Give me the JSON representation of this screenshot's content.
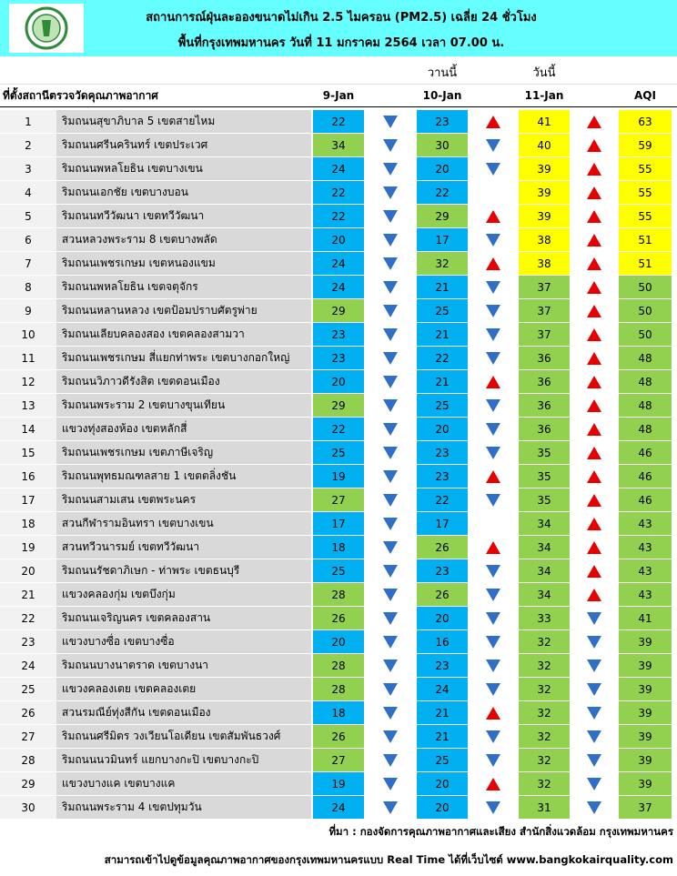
{
  "header": {
    "title": "สถานการณ์ฝุ่นละอองขนาดไม่เกิน 2.5 ไมครอน (PM2.5) เฉลี่ย 24 ชั่วโมง",
    "subtitle": "พื้นที่กรุงเทพมหานคร วันที่ 11 มกราคม 2564 เวลา 07.00 น."
  },
  "table": {
    "yesterday": "วานนี้",
    "today": "วันนี้",
    "columns": [
      "ที่ตั้งสถานีตรวจวัดคุณภาพอากาศ",
      "9-Jan",
      "10-Jan",
      "11-Jan",
      "AQI"
    ],
    "trend_colors": {
      "up": "#e60000",
      "down": "#2f6fc8"
    },
    "rows": [
      {
        "no": 1,
        "name": "ริมถนนสุขาภิบาล 5 เขตสายไหม",
        "values": [
          22,
          23,
          41,
          63
        ],
        "colors": [
          "#00b0f0",
          "#00b0f0",
          "#ffff00",
          "#ffff00"
        ],
        "trends": [
          "down",
          "up",
          "up"
        ]
      },
      {
        "no": 2,
        "name": "ริมถนนศรีนครินทร์ เขตประเวศ",
        "values": [
          34,
          30,
          40,
          59
        ],
        "colors": [
          "#92d050",
          "#92d050",
          "#ffff00",
          "#ffff00"
        ],
        "trends": [
          "down",
          "down",
          "up"
        ]
      },
      {
        "no": 3,
        "name": "ริมถนนพหลโยธิน เขตบางเขน",
        "values": [
          24,
          20,
          39,
          55
        ],
        "colors": [
          "#00b0f0",
          "#00b0f0",
          "#ffff00",
          "#ffff00"
        ],
        "trends": [
          "down",
          "down",
          "up"
        ]
      },
      {
        "no": 4,
        "name": "ริมถนนเอกชัย เขตบางบอน",
        "values": [
          22,
          22,
          39,
          55
        ],
        "colors": [
          "#00b0f0",
          "#00b0f0",
          "#ffff00",
          "#ffff00"
        ],
        "trends": [
          "down",
          null,
          "up"
        ]
      },
      {
        "no": 5,
        "name": "ริมถนนทวีวัฒนา เขตทวีวัฒนา",
        "values": [
          22,
          29,
          39,
          55
        ],
        "colors": [
          "#00b0f0",
          "#92d050",
          "#ffff00",
          "#ffff00"
        ],
        "trends": [
          "down",
          "up",
          "up"
        ]
      },
      {
        "no": 6,
        "name": "สวนหลวงพระราม 8 เขตบางพลัด",
        "values": [
          20,
          17,
          38,
          51
        ],
        "colors": [
          "#00b0f0",
          "#00b0f0",
          "#ffff00",
          "#ffff00"
        ],
        "trends": [
          "down",
          "down",
          "up"
        ]
      },
      {
        "no": 7,
        "name": "ริมถนนเพชรเกษม เขตหนองแขม",
        "values": [
          24,
          32,
          38,
          51
        ],
        "colors": [
          "#00b0f0",
          "#92d050",
          "#ffff00",
          "#ffff00"
        ],
        "trends": [
          "down",
          "up",
          "up"
        ]
      },
      {
        "no": 8,
        "name": "ริมถนนพหลโยธิน เขตจตุจักร",
        "values": [
          24,
          21,
          37,
          50
        ],
        "colors": [
          "#00b0f0",
          "#00b0f0",
          "#92d050",
          "#92d050"
        ],
        "trends": [
          "down",
          "down",
          "up"
        ]
      },
      {
        "no": 9,
        "name": "ริมถนนหลานหลวง เขตป้อมปราบศัตรูพ่าย",
        "values": [
          29,
          25,
          37,
          50
        ],
        "colors": [
          "#92d050",
          "#00b0f0",
          "#92d050",
          "#92d050"
        ],
        "trends": [
          "down",
          "down",
          "up"
        ]
      },
      {
        "no": 10,
        "name": "ริมถนนเลียบคลองสอง เขตคลองสามวา",
        "values": [
          23,
          21,
          37,
          50
        ],
        "colors": [
          "#00b0f0",
          "#00b0f0",
          "#92d050",
          "#92d050"
        ],
        "trends": [
          "down",
          "down",
          "up"
        ]
      },
      {
        "no": 11,
        "name": "ริมถนนเพชรเกษม สี่แยกท่าพระ เขตบางกอกใหญ่",
        "values": [
          23,
          22,
          36,
          48
        ],
        "colors": [
          "#00b0f0",
          "#00b0f0",
          "#92d050",
          "#92d050"
        ],
        "trends": [
          "down",
          "down",
          "up"
        ]
      },
      {
        "no": 12,
        "name": "ริมถนนวิภาวดีรังสิต เขตดอนเมือง",
        "values": [
          20,
          21,
          36,
          48
        ],
        "colors": [
          "#00b0f0",
          "#00b0f0",
          "#92d050",
          "#92d050"
        ],
        "trends": [
          "down",
          "up",
          "up"
        ]
      },
      {
        "no": 13,
        "name": "ริมถนนพระราม 2 เขตบางขุนเทียน",
        "values": [
          29,
          25,
          36,
          48
        ],
        "colors": [
          "#92d050",
          "#00b0f0",
          "#92d050",
          "#92d050"
        ],
        "trends": [
          "down",
          "down",
          "up"
        ]
      },
      {
        "no": 14,
        "name": "แขวงทุ่งสองห้อง เขตหลักสี่",
        "values": [
          22,
          20,
          36,
          48
        ],
        "colors": [
          "#00b0f0",
          "#00b0f0",
          "#92d050",
          "#92d050"
        ],
        "trends": [
          "down",
          "down",
          "up"
        ]
      },
      {
        "no": 15,
        "name": "ริมถนนเพชรเกษม เขตภาษีเจริญ",
        "values": [
          25,
          23,
          35,
          46
        ],
        "colors": [
          "#00b0f0",
          "#00b0f0",
          "#92d050",
          "#92d050"
        ],
        "trends": [
          "down",
          "down",
          "up"
        ]
      },
      {
        "no": 16,
        "name": "ริมถนนพุทธมณฑลสาย 1 เขตตลิ่งชัน",
        "values": [
          19,
          23,
          35,
          46
        ],
        "colors": [
          "#00b0f0",
          "#00b0f0",
          "#92d050",
          "#92d050"
        ],
        "trends": [
          "down",
          "up",
          "up"
        ]
      },
      {
        "no": 17,
        "name": "ริมถนนสามเสน เขตพระนคร",
        "values": [
          27,
          22,
          35,
          46
        ],
        "colors": [
          "#92d050",
          "#00b0f0",
          "#92d050",
          "#92d050"
        ],
        "trends": [
          "down",
          "down",
          "up"
        ]
      },
      {
        "no": 18,
        "name": "สวนกีฬารามอินทรา เขตบางเขน",
        "values": [
          17,
          17,
          34,
          43
        ],
        "colors": [
          "#00b0f0",
          "#00b0f0",
          "#92d050",
          "#92d050"
        ],
        "trends": [
          "down",
          null,
          "up"
        ]
      },
      {
        "no": 19,
        "name": "สวนทวีวนารมย์ เขตทวีวัฒนา",
        "values": [
          18,
          26,
          34,
          43
        ],
        "colors": [
          "#00b0f0",
          "#92d050",
          "#92d050",
          "#92d050"
        ],
        "trends": [
          "down",
          "up",
          "up"
        ]
      },
      {
        "no": 20,
        "name": "ริมถนนรัชดาภิเษก - ท่าพระ เขตธนบุรี",
        "values": [
          25,
          23,
          34,
          43
        ],
        "colors": [
          "#00b0f0",
          "#00b0f0",
          "#92d050",
          "#92d050"
        ],
        "trends": [
          "down",
          "down",
          "up"
        ]
      },
      {
        "no": 21,
        "name": "แขวงคลองกุ่ม เขตบึงกุ่ม",
        "values": [
          28,
          26,
          34,
          43
        ],
        "colors": [
          "#92d050",
          "#92d050",
          "#92d050",
          "#92d050"
        ],
        "trends": [
          "down",
          "down",
          "up"
        ]
      },
      {
        "no": 22,
        "name": "ริมถนนเจริญนคร เขตคลองสาน",
        "values": [
          26,
          20,
          33,
          41
        ],
        "colors": [
          "#92d050",
          "#00b0f0",
          "#92d050",
          "#92d050"
        ],
        "trends": [
          "down",
          "down",
          "down"
        ]
      },
      {
        "no": 23,
        "name": "แขวงบางซื่อ เขตบางซื่อ",
        "values": [
          20,
          16,
          32,
          39
        ],
        "colors": [
          "#00b0f0",
          "#00b0f0",
          "#92d050",
          "#92d050"
        ],
        "trends": [
          "down",
          "down",
          "down"
        ]
      },
      {
        "no": 24,
        "name": "ริมถนนบางนาตราด เขตบางนา",
        "values": [
          28,
          23,
          32,
          39
        ],
        "colors": [
          "#92d050",
          "#00b0f0",
          "#92d050",
          "#92d050"
        ],
        "trends": [
          "down",
          "down",
          "down"
        ]
      },
      {
        "no": 25,
        "name": "แขวงคลองเตย เขตคลองเตย",
        "values": [
          28,
          24,
          32,
          39
        ],
        "colors": [
          "#92d050",
          "#00b0f0",
          "#92d050",
          "#92d050"
        ],
        "trends": [
          "down",
          "down",
          "down"
        ]
      },
      {
        "no": 26,
        "name": "สวนรมณีย์ทุ่งสีกัน เขตดอนเมือง",
        "values": [
          18,
          21,
          32,
          39
        ],
        "colors": [
          "#00b0f0",
          "#00b0f0",
          "#92d050",
          "#92d050"
        ],
        "trends": [
          "down",
          "up",
          "down"
        ]
      },
      {
        "no": 27,
        "name": "ริมถนนศรีมิตร วงเวียนโอเดียน เขตสัมพันธวงศ์",
        "values": [
          26,
          21,
          32,
          39
        ],
        "colors": [
          "#92d050",
          "#00b0f0",
          "#92d050",
          "#92d050"
        ],
        "trends": [
          "down",
          "down",
          "down"
        ]
      },
      {
        "no": 28,
        "name": "ริมถนนนวมินทร์ แยกบางกะปิ เขตบางกะปิ",
        "values": [
          27,
          25,
          32,
          39
        ],
        "colors": [
          "#92d050",
          "#00b0f0",
          "#92d050",
          "#92d050"
        ],
        "trends": [
          "down",
          "down",
          "down"
        ]
      },
      {
        "no": 29,
        "name": "แขวงบางแค เขตบางแค",
        "values": [
          19,
          20,
          32,
          39
        ],
        "colors": [
          "#00b0f0",
          "#00b0f0",
          "#92d050",
          "#92d050"
        ],
        "trends": [
          "down",
          "up",
          "down"
        ]
      },
      {
        "no": 30,
        "name": "ริมถนนพระราม 4 เขตปทุมวัน",
        "values": [
          24,
          20,
          31,
          37
        ],
        "colors": [
          "#00b0f0",
          "#00b0f0",
          "#92d050",
          "#92d050"
        ],
        "trends": [
          "down",
          "down",
          "down"
        ]
      }
    ]
  },
  "footer": {
    "source": "ที่มา : กองจัดการคุณภาพอากาศและเสียง สำนักสิ่งแวดล้อม กรุงเทพมหานคร",
    "link": "สามารถเข้าไปดูข้อมูลคุณภาพอากาศของกรุงเทพมหานครแบบ Real Time ได้ที่เว็บไซต์ www.bangkokairquality.com"
  }
}
